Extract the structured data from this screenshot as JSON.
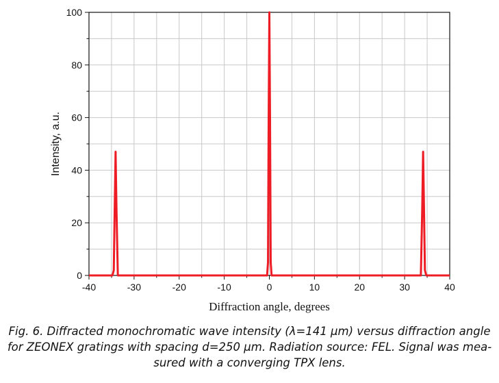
{
  "chart_data": {
    "type": "line",
    "xlabel": "Diffraction angle, degrees",
    "ylabel": "Intensity, a.u.",
    "xlim": [
      -40,
      40
    ],
    "ylim": [
      0,
      100
    ],
    "x_ticks": [
      "-40",
      "-30",
      "-20",
      "-10",
      "0",
      "10",
      "20",
      "30",
      "40"
    ],
    "y_ticks": [
      "0",
      "20",
      "40",
      "60",
      "80",
      "100"
    ],
    "grid": true,
    "series": [
      {
        "color": "#ee1c25",
        "x": [
          -40,
          -34.8,
          -34.5,
          -34.3,
          -34.1,
          -33.9,
          -33.6,
          -0.5,
          -0.3,
          -0.15,
          0,
          0.15,
          0.3,
          0.5,
          33.6,
          33.9,
          34.1,
          34.3,
          34.5,
          34.8,
          40
        ],
        "y": [
          0,
          0,
          2,
          25,
          47,
          25,
          0,
          0,
          5,
          60,
          100,
          60,
          5,
          0,
          0,
          25,
          47,
          25,
          2,
          0,
          0
        ]
      }
    ]
  },
  "caption": {
    "line1": "Fig. 6. Diffracted monochromatic wave intensity (λ=141 μm) versus diffraction angle",
    "line2": "for ZEONEX gratings with spacing d=250 μm. Radiation source: FEL. Signal was mea-",
    "line3": "sured with a converging TPX lens."
  }
}
